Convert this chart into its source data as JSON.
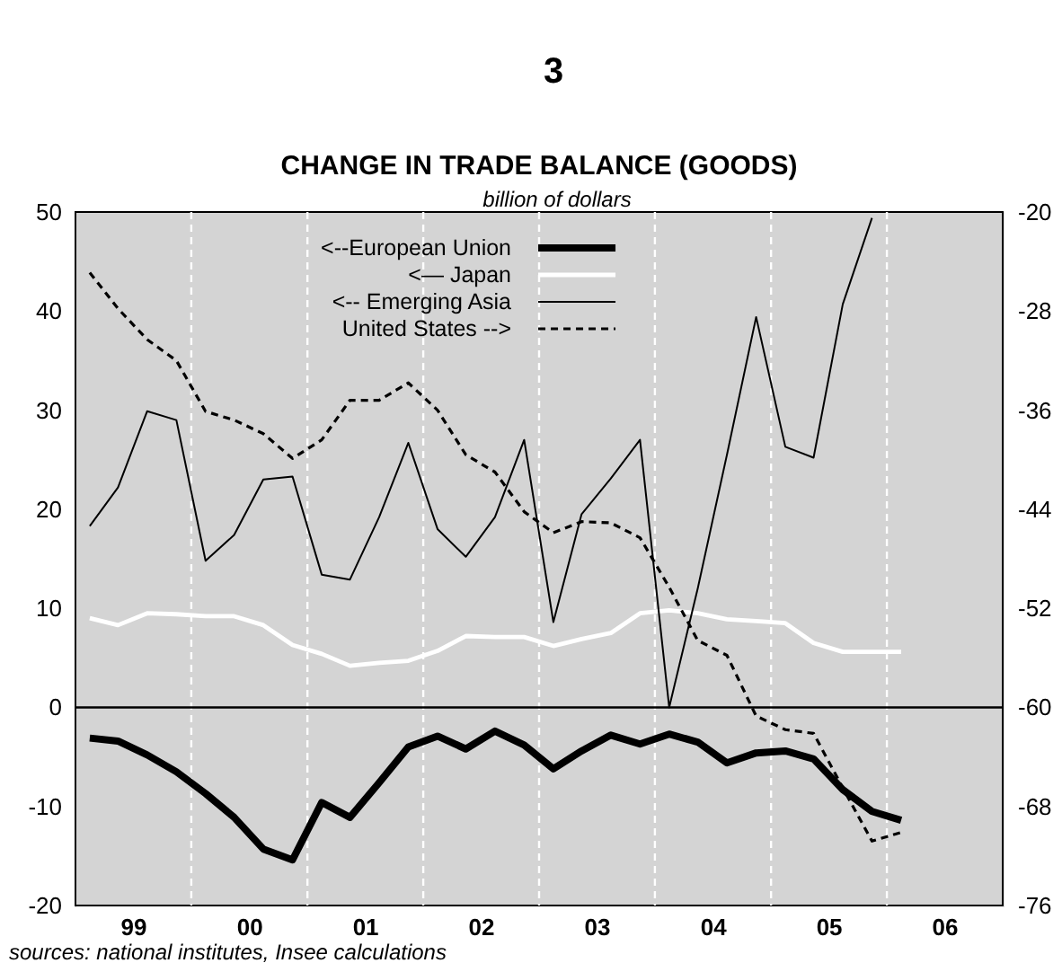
{
  "chart_data": {
    "type": "line",
    "title": "CHANGE IN TRADE BALANCE (GOODS)",
    "subtitle": "billion of dollars",
    "annotations": [
      "3",
      "sources: national institutes, Insee calculations"
    ],
    "x": [
      "1999-02-15",
      "1999-05-15",
      "1999-08-15",
      "1999-11-15",
      "2000-02-15",
      "2000-05-15",
      "2000-08-15",
      "2000-11-15",
      "2001-02-15",
      "2001-05-15",
      "2001-08-15",
      "2001-11-15",
      "2002-02-15",
      "2002-05-15",
      "2002-08-15",
      "2002-11-15",
      "2003-02-15",
      "2003-05-15",
      "2003-08-15",
      "2003-11-15",
      "2004-02-15",
      "2004-05-15",
      "2004-08-15",
      "2004-11-15",
      "2005-02-15",
      "2005-05-15",
      "2005-08-15",
      "2005-11-15",
      "2006-02-15"
    ],
    "series": [
      {
        "name": "<--European Union",
        "color": "#000000",
        "values": [
          -3.1,
          -3.4,
          -4.8,
          -6.5,
          -8.7,
          -11.1,
          -14.3,
          -15.4,
          -9.6,
          -11.1,
          -7.6,
          -4.0,
          -2.9,
          -4.2,
          -2.4,
          -3.8,
          -6.2,
          -4.4,
          -2.8,
          -3.7,
          -2.7,
          -3.5,
          -5.6,
          -4.6,
          -4.4,
          -5.2,
          -8.3,
          -10.5,
          -11.4
        ]
      },
      {
        "name": "<— Japan",
        "color": "#ffffff",
        "values": [
          9.0,
          8.3,
          9.5,
          9.4,
          9.2,
          9.2,
          8.3,
          6.3,
          5.4,
          4.2,
          4.5,
          4.7,
          5.7,
          7.2,
          7.1,
          7.1,
          6.2,
          6.9,
          7.5,
          9.5,
          9.8,
          9.5,
          8.9,
          8.7,
          8.5,
          6.5,
          5.6,
          5.6,
          5.6
        ]
      },
      {
        "name": "<-- Emerging Asia",
        "color": "#000000",
        "values": [
          18.3,
          22.2,
          29.9,
          29.0,
          14.8,
          17.4,
          23.0,
          23.3,
          13.4,
          12.9,
          19.2,
          26.7,
          18.0,
          15.2,
          19.2,
          27.0,
          8.6,
          19.5,
          23.1,
          27.0,
          0,
          12,
          25.5,
          39.4,
          26.3,
          25.2,
          40.7,
          49.4,
          null
        ]
      },
      {
        "name": "United States -->",
        "color": "#000000",
        "axis": "y2",
        "line_style": "dashed",
        "values": [
          -24.9,
          -27.8,
          -30.3,
          -32.0,
          -36.1,
          -36.8,
          -37.9,
          -39.9,
          -38.4,
          -35.2,
          -35.2,
          -33.8,
          -36.0,
          -39.6,
          -41.0,
          -44.2,
          -45.9,
          -45.0,
          -45.1,
          -46.3,
          -50.3,
          -54.6,
          -55.8,
          -60.7,
          -61.8,
          -62.1,
          -66.5,
          -70.8,
          -70.1
        ]
      }
    ],
    "xlim": [
      "1999-01-01",
      "2007-01-01"
    ],
    "xticks": [
      {
        "value": "1999-07-01",
        "label": "99"
      },
      {
        "value": "2000-01-01",
        "label": null
      },
      {
        "value": "2000-07-01",
        "label": "00"
      },
      {
        "value": "2001-01-01",
        "label": null
      },
      {
        "value": "2001-07-01",
        "label": "01"
      },
      {
        "value": "2002-01-01",
        "label": null
      },
      {
        "value": "2002-07-01",
        "label": "02"
      },
      {
        "value": "2003-01-01",
        "label": null
      },
      {
        "value": "2003-07-01",
        "label": "03"
      },
      {
        "value": "2004-01-01",
        "label": null
      },
      {
        "value": "2004-07-01",
        "label": "04"
      },
      {
        "value": "2005-01-01",
        "label": null
      },
      {
        "value": "2005-07-01",
        "label": "05"
      },
      {
        "value": "2006-01-01",
        "label": null
      },
      {
        "value": "2006-07-01",
        "label": "06"
      }
    ],
    "ylim": [
      -20,
      50
    ],
    "yticks": [
      -20,
      -10,
      0,
      10,
      20,
      30,
      40,
      50
    ],
    "y2lim": [
      -76,
      -20
    ],
    "y2ticks": [
      -76,
      -68,
      -60,
      -52,
      -44,
      -36,
      -28,
      -20
    ],
    "ref_lines": [
      {
        "axis": "y",
        "value": 0,
        "color": "#000000"
      }
    ],
    "grid": true,
    "legend": "top",
    "line_style": "solid"
  }
}
